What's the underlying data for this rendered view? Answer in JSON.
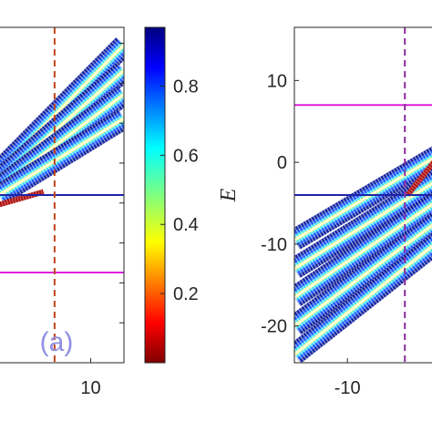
{
  "chart_data": [
    {
      "type": "scatter",
      "panel_label": "(a)",
      "xlabel": "",
      "ylabel": "",
      "x_ticks": [
        "10"
      ],
      "x_tick_values": [
        10
      ],
      "xlim": [
        -6.5,
        16
      ],
      "ylim": [
        -25,
        17
      ],
      "colored_bands": [
        {
          "from": [
            -6.5,
            -1.0
          ],
          "to": [
            16,
            14.8
          ]
        },
        {
          "from": [
            -6.5,
            -2.0
          ],
          "to": [
            16,
            11.6
          ]
        },
        {
          "from": [
            -6.5,
            -3.0
          ],
          "to": [
            16,
            8.6
          ]
        },
        {
          "from": [
            -6.5,
            -4.0
          ],
          "to": [
            16,
            5.6
          ]
        }
      ],
      "hlines": [
        {
          "y": -4.0,
          "color": "#1f24a6"
        },
        {
          "y": -13.7,
          "color": "#e020e0"
        }
      ],
      "vline": {
        "x": 3.5,
        "color": "#c2461c",
        "style": "dashed"
      },
      "colorbar": {
        "colormap": "jet-reversed",
        "ticks": [
          "0.2",
          "0.4",
          "0.6",
          "0.8"
        ],
        "tick_values": [
          0.2,
          0.4,
          0.6,
          0.8
        ],
        "range": [
          0,
          0.97
        ]
      }
    },
    {
      "type": "scatter",
      "panel_label": "",
      "xlabel": "",
      "ylabel": "E",
      "x_ticks": [
        "-10"
      ],
      "x_tick_values": [
        -10
      ],
      "y_ticks": [
        "10",
        "0",
        "-10",
        "-20"
      ],
      "y_tick_values": [
        10,
        0,
        -10,
        -20
      ],
      "xlim": [
        -16,
        0.5
      ],
      "ylim": [
        -24.5,
        16.5
      ],
      "colored_bands": [
        {
          "from": [
            -16,
            -9.5
          ],
          "to": [
            0.5,
            1.0
          ]
        },
        {
          "from": [
            -16,
            -13.0
          ],
          "to": [
            0.5,
            -2.0
          ]
        },
        {
          "from": [
            -16,
            -16.5
          ],
          "to": [
            0.5,
            -4.5
          ]
        },
        {
          "from": [
            -16,
            -20.0
          ],
          "to": [
            0.5,
            -7.0
          ]
        },
        {
          "from": [
            -16,
            -23.5
          ],
          "to": [
            0.5,
            -9.5
          ]
        }
      ],
      "hlines": [
        {
          "y": 7.0,
          "color": "#e020e0"
        },
        {
          "y": -4.0,
          "color": "#1f24a6"
        }
      ],
      "vline": {
        "x": -3.5,
        "color": "#8a2c9e",
        "style": "dashed"
      }
    }
  ]
}
